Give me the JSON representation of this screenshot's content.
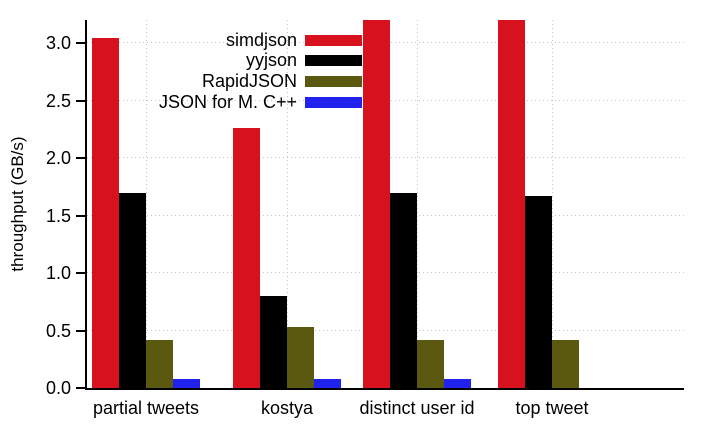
{
  "chart_data": {
    "type": "bar",
    "title": "",
    "xlabel": "",
    "ylabel": "throughput (GB/s)",
    "categories": [
      "partial tweets",
      "kostya",
      "distinct user id",
      "top tweet"
    ],
    "series": [
      {
        "name": "simdjson",
        "color": "#d8111f",
        "values": [
          3.04,
          2.26,
          3.2,
          3.2
        ]
      },
      {
        "name": "yyjson",
        "color": "#000000",
        "values": [
          1.7,
          0.8,
          1.7,
          1.67
        ]
      },
      {
        "name": "RapidJSON",
        "color": "#5b5910",
        "values": [
          0.42,
          0.53,
          0.42,
          0.42
        ]
      },
      {
        "name": "JSON for M. C++",
        "color": "#2222ef",
        "values": [
          0.08,
          0.08,
          0.08,
          null
        ]
      }
    ],
    "ylim": [
      0,
      3.2
    ],
    "yticks": [
      0.0,
      0.5,
      1.0,
      1.5,
      2.0,
      2.5,
      3.0
    ],
    "grid": "dotted horizontal lines at each 0.5 tick; dotted vertical lines at each category center",
    "legend_position": "inside top, left of center, labels right-aligned with color swatch on right",
    "note_visible": "simdjson bars for distinct user id and top tweet are clipped at the plot top (~3.2)"
  },
  "axis_colors": {
    "axis": "#000000",
    "gridline": "#c4c4c4",
    "background": "#ffffff"
  }
}
